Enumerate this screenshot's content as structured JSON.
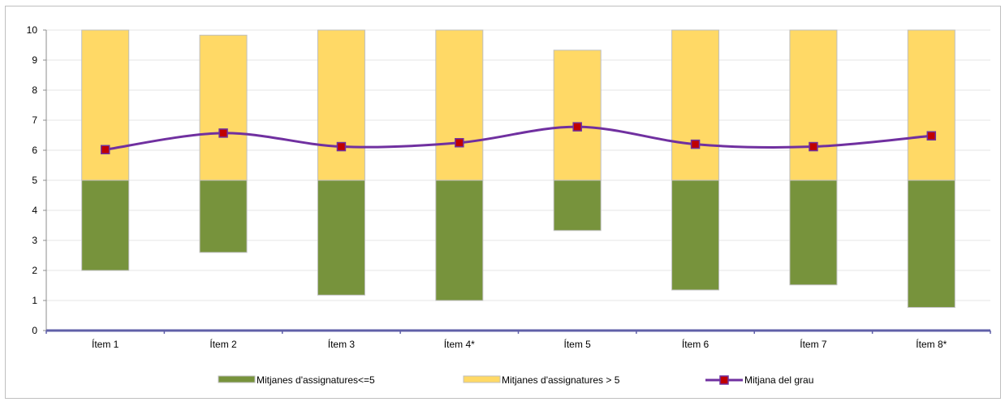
{
  "chart_data": {
    "type": "bar",
    "categories": [
      "Ítem 1",
      "Ítem 2",
      "Ítem 3",
      "Ítem 4*",
      "Ítem 5",
      "Ítem 6",
      "Ítem 7",
      "Ítem 8*"
    ],
    "ylim": [
      0,
      10
    ],
    "yticks": [
      "0",
      "1",
      "2",
      "3",
      "4",
      "5",
      "6",
      "7",
      "8",
      "9",
      "10"
    ],
    "grid": true,
    "legend_position": "bottom",
    "series": [
      {
        "name": "Mitjanes d'assignatures<=5",
        "kind": "floating-bar",
        "color": "#77933c",
        "low": [
          2.0,
          2.6,
          1.18,
          1.0,
          3.33,
          1.35,
          1.52,
          0.77
        ],
        "high": [
          5,
          5,
          5,
          5,
          5,
          5,
          5,
          5
        ]
      },
      {
        "name": "Mitjanes d'assignatures > 5",
        "kind": "floating-bar",
        "color": "#ffd966",
        "low": [
          5,
          5,
          5,
          5,
          5,
          5,
          5,
          5
        ],
        "high": [
          10,
          9.83,
          10,
          10,
          9.33,
          10,
          10,
          10
        ]
      },
      {
        "name": "Mitjana del grau",
        "kind": "line",
        "color": "#7030a0",
        "marker_color": "#c00000",
        "values": [
          6.02,
          6.57,
          6.12,
          6.25,
          6.78,
          6.2,
          6.12,
          6.48
        ]
      }
    ]
  }
}
